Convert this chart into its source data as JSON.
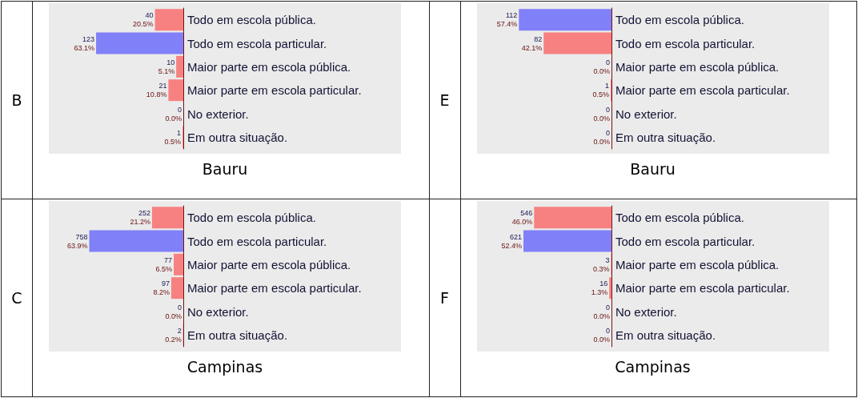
{
  "chart_data": [
    {
      "type": "bar",
      "orientation": "horizontal",
      "title": "B",
      "annotations": [
        "Bauru"
      ],
      "categories": [
        "Todo em escola pública.",
        "Todo em escola particular.",
        "Maior parte em escola pública.",
        "Maior parte em escola particular.",
        "No exterior.",
        "Em outra situação."
      ],
      "values": [
        40,
        123,
        10,
        21,
        0,
        1
      ],
      "colors": [
        "#f78181",
        "#8080f8",
        "#f78181",
        "#f78181",
        "#f78181",
        "#f78181"
      ],
      "value_labels": [
        "40\n20.5%",
        "123\n63.1%",
        "10\n5.1%",
        "21\n10.8%",
        "0\n0.0%",
        "1\n0.5%"
      ]
    },
    {
      "type": "bar",
      "orientation": "horizontal",
      "title": "E",
      "annotations": [
        "Bauru"
      ],
      "categories": [
        "Todo em escola pública.",
        "Todo em escola particular.",
        "Maior parte em escola pública.",
        "Maior parte em escola particular.",
        "No exterior.",
        "Em outra situação."
      ],
      "values": [
        112,
        82,
        0,
        1,
        0,
        0
      ],
      "colors": [
        "#8080f8",
        "#f78181",
        "#f78181",
        "#f78181",
        "#f78181",
        "#f78181"
      ],
      "value_labels": [
        "112\n57.4%",
        "82\n42.1%",
        "0\n0.0%",
        "1\n0.5%",
        "0\n0.0%",
        "0\n0.0%"
      ]
    },
    {
      "type": "bar",
      "orientation": "horizontal",
      "title": "C",
      "annotations": [
        "Campinas"
      ],
      "categories": [
        "Todo em escola pública.",
        "Todo em escola particular.",
        "Maior parte em escola pública.",
        "Maior parte em escola particular.",
        "No exterior.",
        "Em outra situação."
      ],
      "values": [
        252,
        758,
        77,
        97,
        0,
        2
      ],
      "colors": [
        "#f78181",
        "#8080f8",
        "#f78181",
        "#f78181",
        "#f78181",
        "#f78181"
      ],
      "value_labels": [
        "252\n21.2%",
        "758\n63.9%",
        "77\n6.5%",
        "97\n8.2%",
        "0\n0.0%",
        "2\n0.2%"
      ]
    },
    {
      "type": "bar",
      "orientation": "horizontal",
      "title": "F",
      "annotations": [
        "Campinas"
      ],
      "categories": [
        "Todo em escola pública.",
        "Todo em escola particular.",
        "Maior parte em escola pública.",
        "Maior parte em escola particular.",
        "No exterior.",
        "Em outra situação."
      ],
      "values": [
        546,
        621,
        3,
        16,
        0,
        0
      ],
      "colors": [
        "#f78181",
        "#8080f8",
        "#f78181",
        "#f78181",
        "#f78181",
        "#f78181"
      ],
      "value_labels": [
        "546\n46.0%",
        "621\n52.4%",
        "3\n0.3%",
        "16\n1.3%",
        "0\n0.0%",
        "0\n0.0%"
      ]
    }
  ]
}
